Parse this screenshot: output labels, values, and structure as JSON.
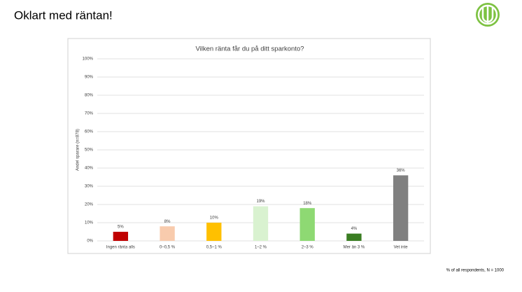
{
  "slide_title": "Oklart med räntan!",
  "footnote": "% of all respondents, N = 1000",
  "chart_data": {
    "type": "bar",
    "title": "Vilken ränta får du på ditt sparkonto?",
    "y_label": "Andel sparare (n=878)",
    "categories": [
      "Ingen ränta alls",
      "0–0,5 %",
      "0,5–1 %",
      "1–2 %",
      "2–3 %",
      "Mer än 3 %",
      "Vet inte"
    ],
    "values": [
      5,
      8,
      10,
      19,
      18,
      4,
      36
    ],
    "value_labels": [
      "5%",
      "8%",
      "10%",
      "19%",
      "18%",
      "4%",
      "36%"
    ],
    "colors": [
      "#c00000",
      "#f8cbad",
      "#ffc000",
      "#d9f2d0",
      "#8ed973",
      "#3a7d22",
      "#808080"
    ],
    "ylim": [
      0,
      100
    ],
    "yticks": [
      {
        "value": 0,
        "label": "0%"
      },
      {
        "value": 10,
        "label": "10%"
      },
      {
        "value": 20,
        "label": "20%"
      },
      {
        "value": 30,
        "label": "30%"
      },
      {
        "value": 40,
        "label": "40%"
      },
      {
        "value": 50,
        "label": "50%"
      },
      {
        "value": 60,
        "label": "60%"
      },
      {
        "value": 70,
        "label": "70%"
      },
      {
        "value": 80,
        "label": "80%"
      },
      {
        "value": 90,
        "label": "90%"
      },
      {
        "value": 100,
        "label": "100%"
      }
    ],
    "grid": true
  }
}
